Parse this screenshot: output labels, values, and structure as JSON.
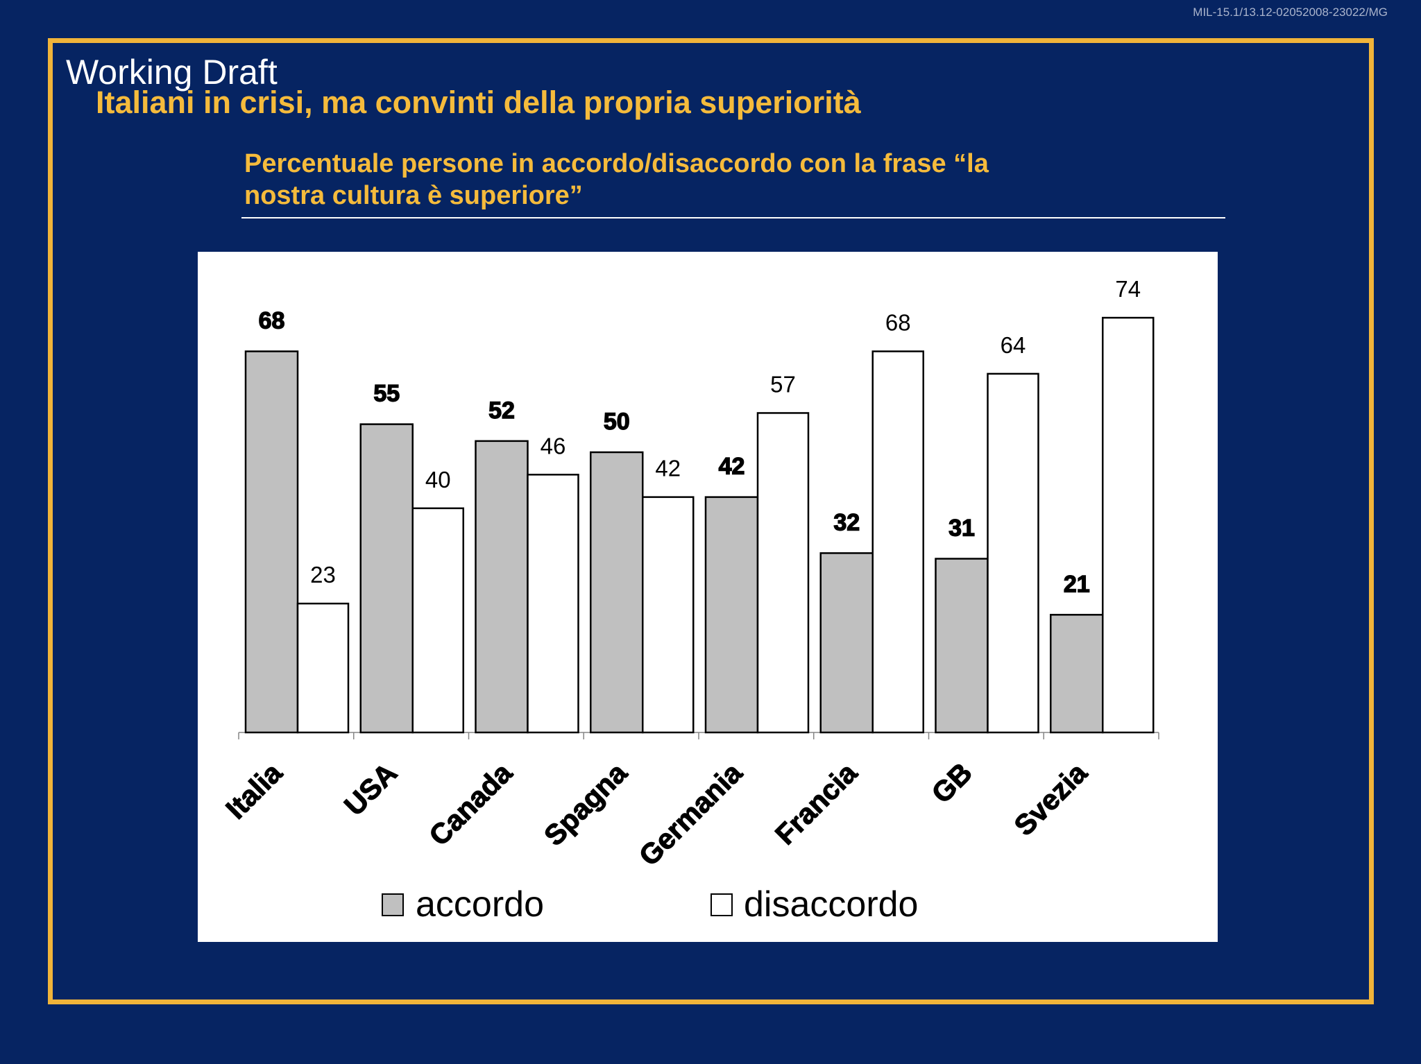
{
  "colors": {
    "background": "#062462",
    "frame": "#f0b43a",
    "accent_text": "#f5bb3c",
    "header_text": "#ffffff",
    "doc_code_text": "#aab4cc",
    "bar_outline": "#000000",
    "axis": "#868686"
  },
  "header": {
    "doc_code": "MIL-15.1/13.12-02052008-23022/MG",
    "draft_label": "Working Draft",
    "title": "Italiani in crisi, ma convinti della propria superiorità"
  },
  "chart_data": {
    "type": "bar",
    "title": "Percentuale persone in accordo/disaccordo con la frase “la nostra cultura è superiore”",
    "xlabel": "",
    "ylabel": "",
    "categories": [
      "Italia",
      "USA",
      "Canada",
      "Spagna",
      "Germania",
      "Francia",
      "GB",
      "Svezia"
    ],
    "series": [
      {
        "name": "accordo",
        "values": [
          68,
          55,
          52,
          50,
          42,
          32,
          31,
          21
        ],
        "color": "#c0c0c0"
      },
      {
        "name": "disaccordo",
        "values": [
          23,
          40,
          46,
          42,
          57,
          68,
          64,
          74
        ],
        "color": "#ffffff"
      }
    ],
    "ylim": [
      0,
      80
    ],
    "data_labels": true,
    "y_axis_visible": false,
    "grid": false,
    "legend": "bottom"
  }
}
